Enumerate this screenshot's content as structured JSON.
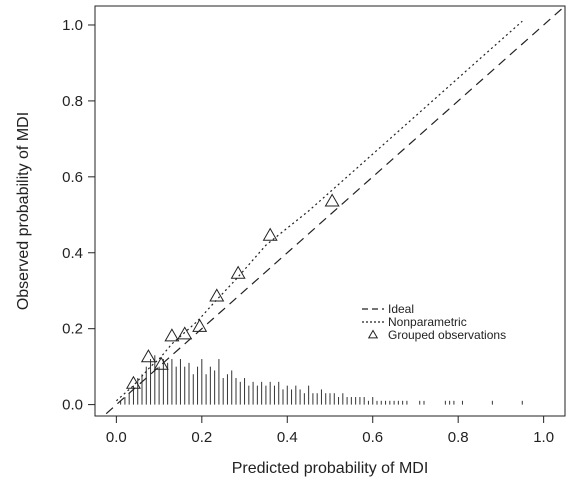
{
  "chart_data": {
    "type": "scatter",
    "title": "",
    "xlabel": "Predicted probability of MDI",
    "ylabel": "Observed probability of MDI",
    "xlim": [
      -0.05,
      1.05
    ],
    "ylim": [
      -0.03,
      1.05
    ],
    "xticks": [
      0.0,
      0.2,
      0.4,
      0.6,
      0.8,
      1.0
    ],
    "xtick_labels": [
      "0.0",
      "0.2",
      "0.4",
      "0.6",
      "0.8",
      "1.0"
    ],
    "yticks": [
      0.0,
      0.2,
      0.4,
      0.6,
      0.8,
      1.0
    ],
    "ytick_labels": [
      "0.0",
      "0.2",
      "0.4",
      "0.6",
      "0.8",
      "1.0"
    ],
    "grid": false,
    "legend_position": "lower-right",
    "series": [
      {
        "name": "Ideal",
        "kind": "line",
        "style": "dashed",
        "x": [
          -0.05,
          1.05
        ],
        "y": [
          -0.05,
          1.05
        ]
      },
      {
        "name": "Nonparametric",
        "kind": "line",
        "style": "dotted",
        "x": [
          0.0,
          0.04,
          0.08,
          0.1,
          0.13,
          0.16,
          0.19,
          0.23,
          0.28,
          0.35,
          0.45,
          0.55,
          0.65,
          0.75,
          0.85,
          0.95
        ],
        "y": [
          0.01,
          0.05,
          0.1,
          0.12,
          0.16,
          0.19,
          0.22,
          0.27,
          0.33,
          0.42,
          0.51,
          0.61,
          0.71,
          0.81,
          0.91,
          1.01
        ]
      },
      {
        "name": "Grouped observations",
        "kind": "markers",
        "marker": "triangle",
        "x": [
          0.04,
          0.075,
          0.105,
          0.13,
          0.16,
          0.195,
          0.235,
          0.285,
          0.36,
          0.505
        ],
        "y": [
          0.055,
          0.125,
          0.105,
          0.18,
          0.185,
          0.205,
          0.285,
          0.345,
          0.445,
          0.535
        ]
      }
    ],
    "rug": {
      "description": "spike histogram of predicted probabilities along the bottom",
      "x": [
        0.01,
        0.02,
        0.03,
        0.04,
        0.05,
        0.06,
        0.07,
        0.08,
        0.09,
        0.1,
        0.11,
        0.12,
        0.13,
        0.14,
        0.15,
        0.16,
        0.17,
        0.18,
        0.19,
        0.2,
        0.21,
        0.22,
        0.23,
        0.24,
        0.25,
        0.26,
        0.27,
        0.28,
        0.29,
        0.3,
        0.31,
        0.32,
        0.33,
        0.34,
        0.35,
        0.36,
        0.37,
        0.38,
        0.39,
        0.4,
        0.41,
        0.42,
        0.43,
        0.44,
        0.45,
        0.46,
        0.47,
        0.48,
        0.49,
        0.5,
        0.51,
        0.52,
        0.53,
        0.54,
        0.55,
        0.56,
        0.57,
        0.58,
        0.59,
        0.6,
        0.61,
        0.62,
        0.63,
        0.64,
        0.65,
        0.66,
        0.67,
        0.68,
        0.71,
        0.72,
        0.77,
        0.78,
        0.79,
        0.81,
        0.88,
        0.95
      ],
      "height": [
        0.01,
        0.02,
        0.03,
        0.05,
        0.07,
        0.08,
        0.1,
        0.12,
        0.13,
        0.1,
        0.12,
        0.11,
        0.12,
        0.1,
        0.12,
        0.1,
        0.11,
        0.08,
        0.1,
        0.12,
        0.08,
        0.1,
        0.09,
        0.12,
        0.07,
        0.08,
        0.09,
        0.07,
        0.06,
        0.07,
        0.05,
        0.06,
        0.05,
        0.06,
        0.05,
        0.06,
        0.05,
        0.06,
        0.04,
        0.05,
        0.04,
        0.05,
        0.04,
        0.03,
        0.05,
        0.03,
        0.03,
        0.04,
        0.03,
        0.03,
        0.03,
        0.02,
        0.03,
        0.02,
        0.02,
        0.02,
        0.02,
        0.02,
        0.01,
        0.02,
        0.01,
        0.01,
        0.01,
        0.01,
        0.01,
        0.01,
        0.01,
        0.01,
        0.01,
        0.01,
        0.01,
        0.01,
        0.01,
        0.01,
        0.01,
        0.01
      ]
    }
  }
}
